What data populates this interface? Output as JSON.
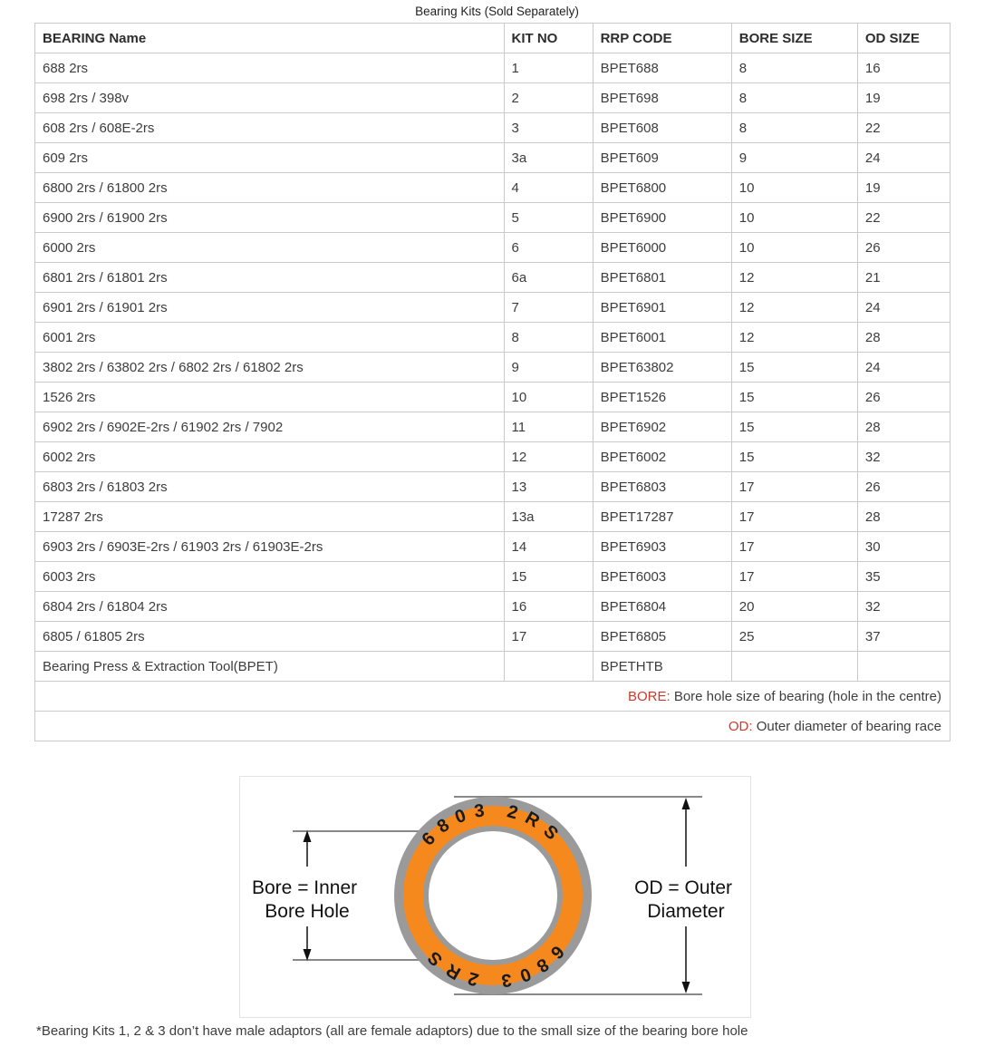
{
  "title": "Bearing Kits (Sold Separately)",
  "table": {
    "headers": [
      "BEARING Name",
      "KIT NO",
      "RRP CODE",
      "BORE SIZE",
      "OD SIZE"
    ],
    "rows": [
      [
        "688 2rs",
        "1",
        "BPET688",
        "8",
        "16"
      ],
      [
        "698 2rs / 398v",
        "2",
        "BPET698",
        "8",
        "19"
      ],
      [
        "608 2rs / 608E-2rs",
        "3",
        "BPET608",
        "8",
        "22"
      ],
      [
        "609 2rs",
        "3a",
        "BPET609",
        "9",
        "24"
      ],
      [
        "6800 2rs / 61800 2rs",
        "4",
        "BPET6800",
        "10",
        "19"
      ],
      [
        "6900 2rs / 61900 2rs",
        "5",
        "BPET6900",
        "10",
        "22"
      ],
      [
        "6000 2rs",
        "6",
        "BPET6000",
        "10",
        "26"
      ],
      [
        "6801 2rs / 61801 2rs",
        "6a",
        "BPET6801",
        "12",
        "21"
      ],
      [
        "6901 2rs / 61901 2rs",
        "7",
        "BPET6901",
        "12",
        "24"
      ],
      [
        "6001 2rs",
        "8",
        "BPET6001",
        "12",
        "28"
      ],
      [
        "3802 2rs / 63802 2rs / 6802 2rs / 61802 2rs",
        "9",
        "BPET63802",
        "15",
        "24"
      ],
      [
        "1526 2rs",
        "10",
        "BPET1526",
        "15",
        "26"
      ],
      [
        "6902 2rs / 6902E-2rs / 61902 2rs / 7902",
        "11",
        "BPET6902",
        "15",
        "28"
      ],
      [
        "6002 2rs",
        "12",
        "BPET6002",
        "15",
        "32"
      ],
      [
        "6803 2rs / 61803 2rs",
        "13",
        "BPET6803",
        "17",
        "26"
      ],
      [
        "17287 2rs",
        "13a",
        "BPET17287",
        "17",
        "28"
      ],
      [
        "6903 2rs / 6903E-2rs / 61903 2rs / 61903E-2rs",
        "14",
        "BPET6903",
        "17",
        "30"
      ],
      [
        "6003 2rs",
        "15",
        "BPET6003",
        "17",
        "35"
      ],
      [
        "6804 2rs / 61804 2rs",
        "16",
        "BPET6804",
        "20",
        "32"
      ],
      [
        "6805 / 61805 2rs",
        "17",
        "BPET6805",
        "25",
        "37"
      ],
      [
        "Bearing Press & Extraction Tool(BPET)",
        "",
        "BPETHTB",
        "",
        ""
      ]
    ],
    "notes": [
      {
        "label": "BORE:",
        "text": " Bore hole size of bearing (hole in the centre)"
      },
      {
        "label": "OD:",
        "text": " Outer diameter of bearing race"
      }
    ]
  },
  "diagram": {
    "ring_text": "6803  2RS",
    "bore_label_line1": "Bore = Inner",
    "bore_label_line2": "Bore Hole",
    "od_label_line1": "OD = Outer",
    "od_label_line2": "Diameter"
  },
  "footnote": "*Bearing Kits 1, 2 & 3 don’t have male adaptors (all are female adaptors) due to the small size of the bearing bore hole",
  "colors": {
    "note_red": "#cb392b",
    "text": "#3d3d3d",
    "table_border": "#cacaca",
    "ring_orange": "#f6891e",
    "ring_gray": "#9a9a9a"
  }
}
